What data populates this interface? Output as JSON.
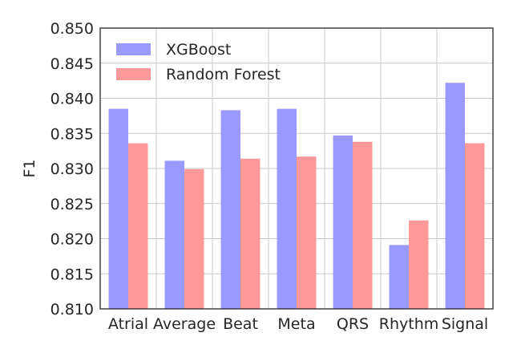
{
  "chart_data": {
    "type": "bar",
    "title": "",
    "xlabel": "",
    "ylabel": "F1",
    "ylim": [
      0.81,
      0.85
    ],
    "yticks": [
      "0.810",
      "0.815",
      "0.820",
      "0.825",
      "0.830",
      "0.835",
      "0.840",
      "0.845",
      "0.850"
    ],
    "grid": true,
    "legend_position": "top-left",
    "categories": [
      "Atrial",
      "Average",
      "Beat",
      "Meta",
      "QRS",
      "Rhythm",
      "Signal"
    ],
    "series": [
      {
        "name": "XGBoost",
        "color": "#9999ff",
        "values": [
          0.8385,
          0.8311,
          0.8383,
          0.8385,
          0.8347,
          0.8191,
          0.8422
        ]
      },
      {
        "name": "Random Forest",
        "color": "#ff9999",
        "values": [
          0.8336,
          0.8299,
          0.8314,
          0.8317,
          0.8338,
          0.8226,
          0.8336
        ]
      }
    ]
  }
}
